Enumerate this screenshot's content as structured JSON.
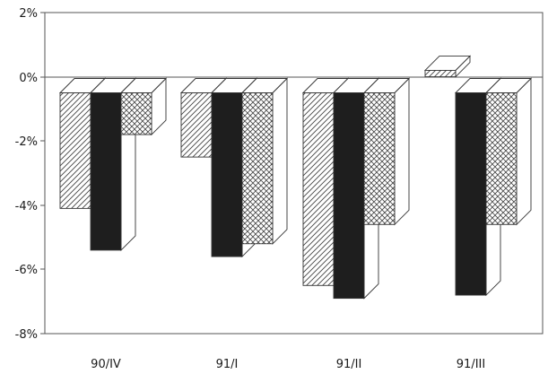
{
  "chart_data": {
    "type": "bar",
    "categories": [
      "90/IV",
      "91/I",
      "91/II",
      "91/III"
    ],
    "series": [
      {
        "pattern": "diagonal-hatch",
        "values": [
          -4.1,
          -2.5,
          -6.5,
          0.2
        ]
      },
      {
        "pattern": "solid-dark",
        "values": [
          -5.4,
          -5.6,
          -6.9,
          -6.8
        ]
      },
      {
        "pattern": "cross-hatch",
        "values": [
          -1.8,
          -5.2,
          -4.6,
          -4.6
        ]
      }
    ],
    "y_ticks": [
      "2%",
      "0%",
      "-2%",
      "-4%",
      "-6%",
      "-8%"
    ],
    "ylim": [
      -8,
      2
    ],
    "grid": false,
    "legend": "none",
    "title": "",
    "xlabel": "",
    "ylabel": ""
  },
  "colors": {
    "axis": "#555555",
    "solid_fill": "#1e1e1e",
    "hatch_line": "#444444",
    "face": "#ffffff"
  }
}
